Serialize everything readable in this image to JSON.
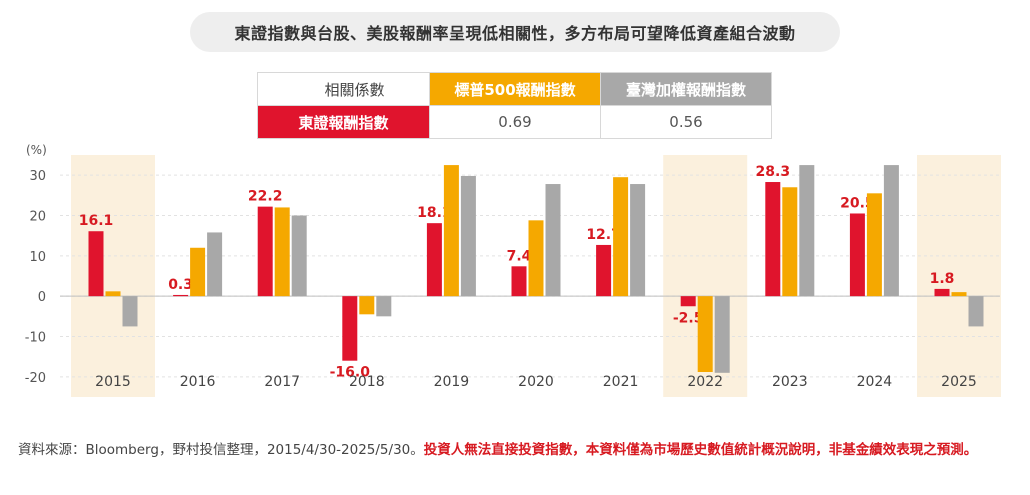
{
  "title": "東證指數與台股、美股報酬率呈現低相關性，多方布局可望降低資產組合波動",
  "correlation_table": {
    "header_label": "相關係數",
    "col1": "標普500報酬指數",
    "col2": "臺灣加權報酬指數",
    "row_label": "東證報酬指數",
    "val1": "0.69",
    "val2": "0.56"
  },
  "chart_data": {
    "type": "bar",
    "unit_label": "(%)",
    "categories": [
      "2015",
      "2016",
      "2017",
      "2018",
      "2019",
      "2020",
      "2021",
      "2022",
      "2023",
      "2024",
      "2025"
    ],
    "highlighted_categories": [
      "2015",
      "2022",
      "2025"
    ],
    "ylim": [
      -25,
      35
    ],
    "yticks": [
      30,
      20,
      10,
      0,
      -10,
      -20
    ],
    "series": [
      {
        "name": "東證報酬指數",
        "color": "#e0142d",
        "labeled": true,
        "values": [
          16.1,
          0.3,
          22.2,
          -16.0,
          18.1,
          7.4,
          12.7,
          -2.5,
          28.3,
          20.5,
          1.8
        ]
      },
      {
        "name": "標普500報酬指數",
        "color": "#f5a800",
        "labeled": false,
        "values": [
          1.2,
          12.0,
          22.0,
          -4.5,
          32.5,
          18.8,
          29.5,
          -18.8,
          27.0,
          25.5,
          1.0
        ]
      },
      {
        "name": "臺灣加權報酬指數",
        "color": "#a8a8a8",
        "labeled": false,
        "values": [
          -7.5,
          15.8,
          20.0,
          -5.0,
          29.8,
          27.8,
          27.8,
          -19.0,
          32.5,
          32.5,
          -7.5
        ]
      }
    ]
  },
  "source": {
    "normal": "資料來源：Bloomberg，野村投信整理，2015/4/30-2025/5/30。",
    "warning": "投資人無法直接投資指數，本資料僅為市場歷史數值統計概況說明，非基金績效表現之預測。"
  }
}
